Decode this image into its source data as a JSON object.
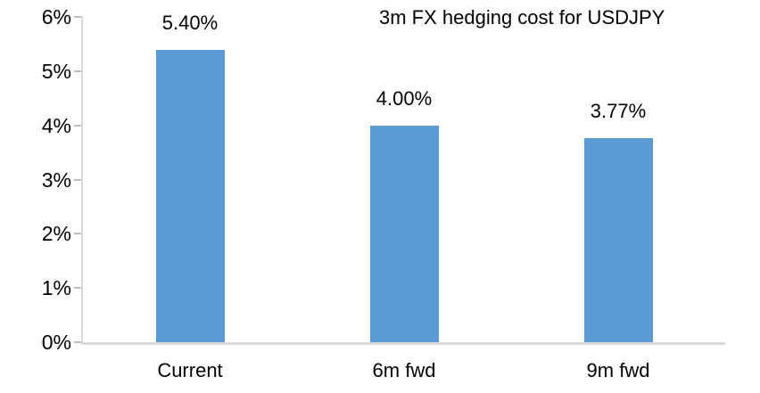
{
  "chart_data": {
    "type": "bar",
    "title": "3m FX hedging cost for USDJPY",
    "categories": [
      "Current",
      "6m fwd",
      "9m fwd"
    ],
    "values": [
      5.4,
      4.0,
      3.77
    ],
    "data_labels": [
      "5.40%",
      "4.00%",
      "3.77%"
    ],
    "xlabel": "",
    "ylabel": "",
    "ylim": [
      0,
      6
    ],
    "yticks": [
      {
        "value": 0,
        "label": "0%"
      },
      {
        "value": 1,
        "label": "1%"
      },
      {
        "value": 2,
        "label": "2%"
      },
      {
        "value": 3,
        "label": "3%"
      },
      {
        "value": 4,
        "label": "4%"
      },
      {
        "value": 5,
        "label": "5%"
      },
      {
        "value": 6,
        "label": "6%"
      }
    ],
    "grid": false,
    "legend": false,
    "colors": {
      "bar": "#5b9bd5",
      "axis_line": "#d9d9d9",
      "tick_mark": "#bfbfbf",
      "text": "#000000",
      "background": "#ffffff"
    }
  }
}
